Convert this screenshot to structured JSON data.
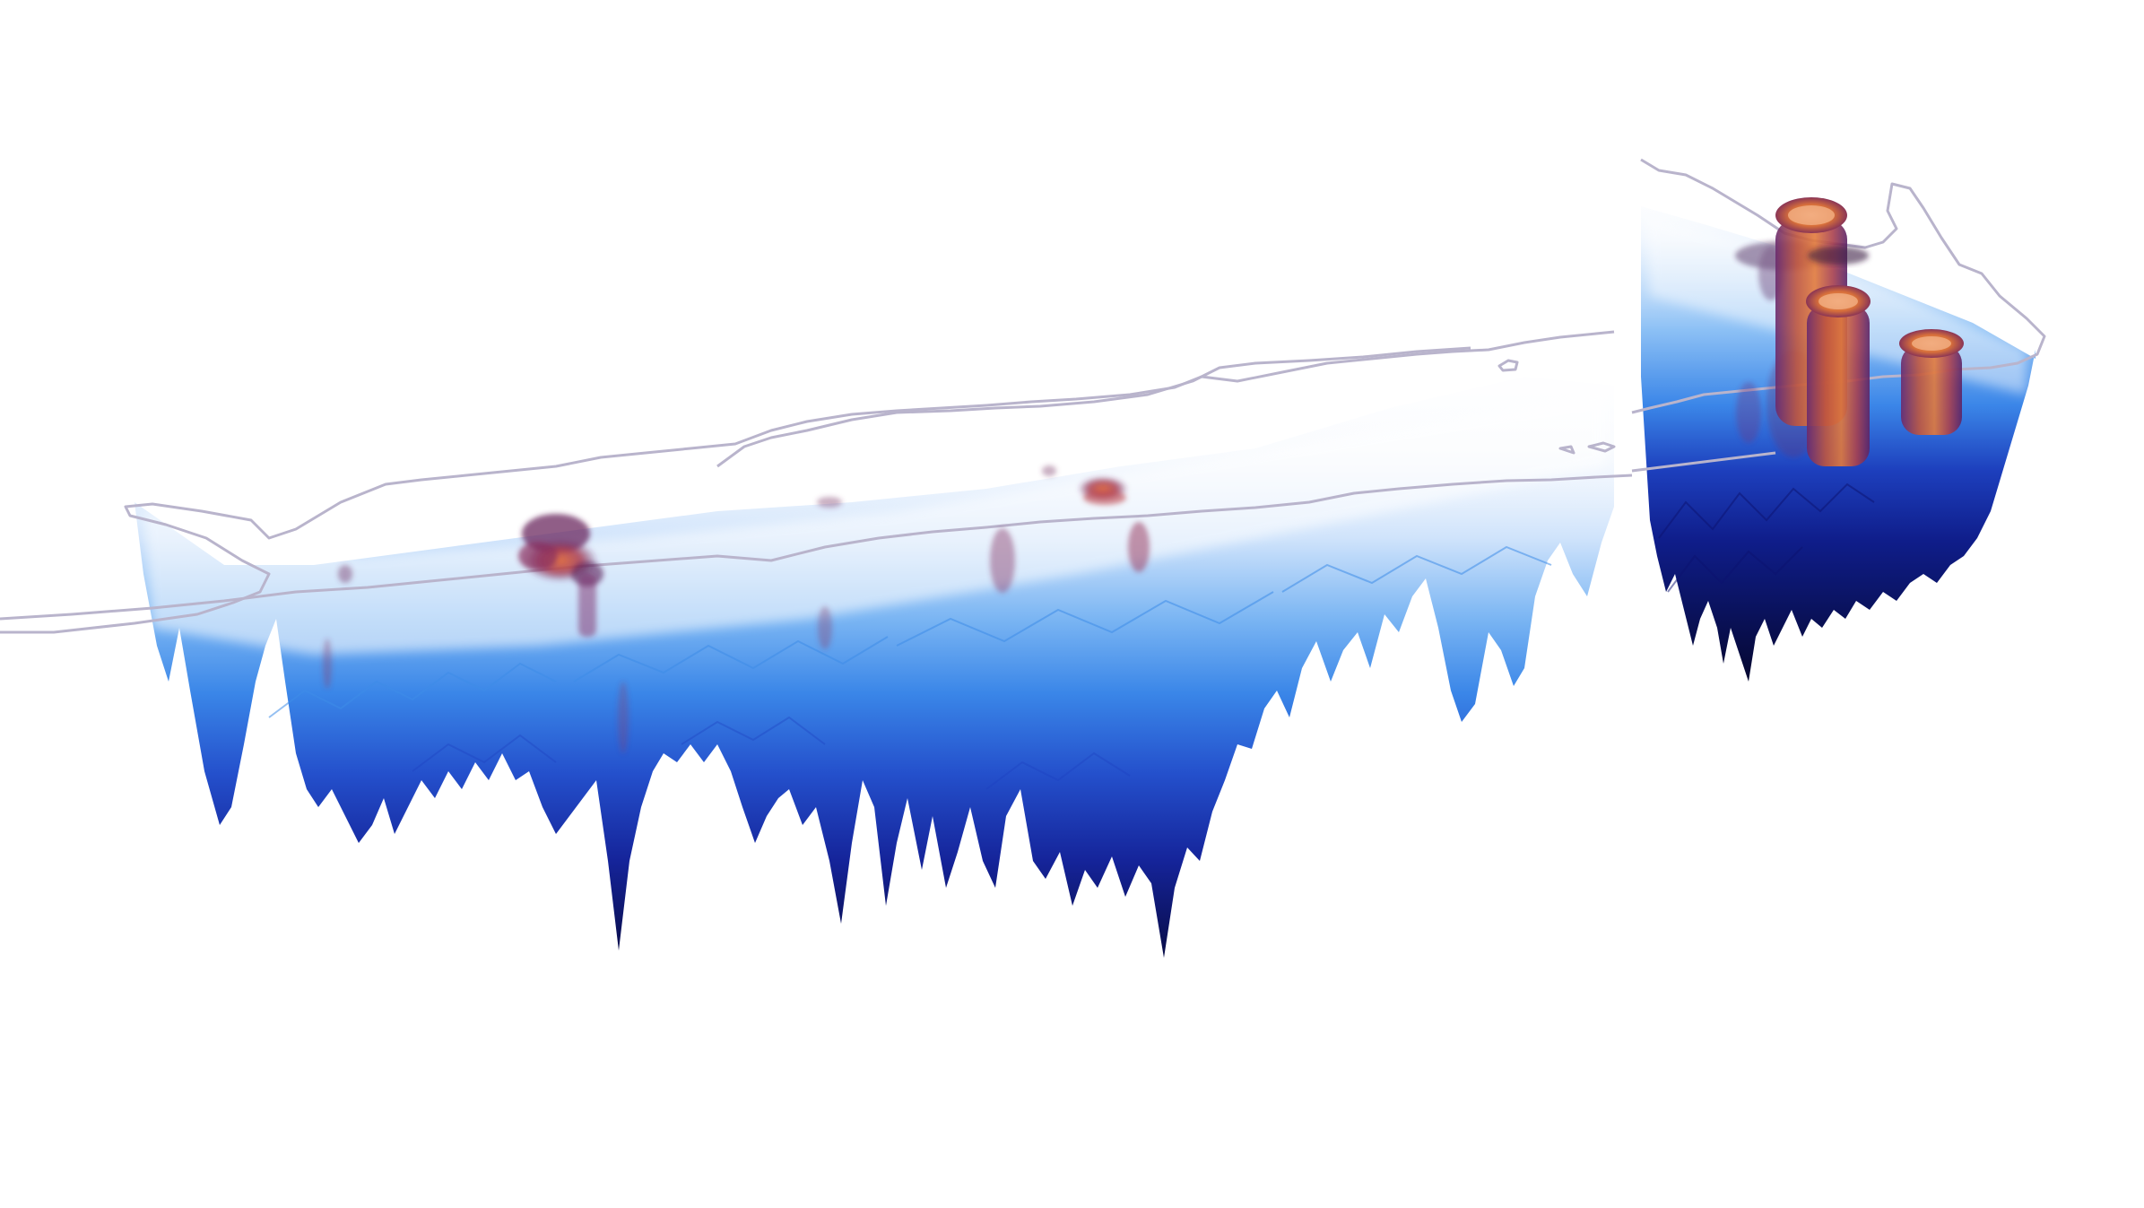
{
  "scene": {
    "background": "#ffffff",
    "colors": {
      "outline": "#b9b4cc",
      "surface_light": "#eef4fd",
      "surface_mid": "#4f9ff0",
      "surface_deep": "#1c3fc0",
      "surface_darkest": "#0a0f5a",
      "feature_core": "#d8703a",
      "feature_halo": "#7a2a6a"
    }
  }
}
